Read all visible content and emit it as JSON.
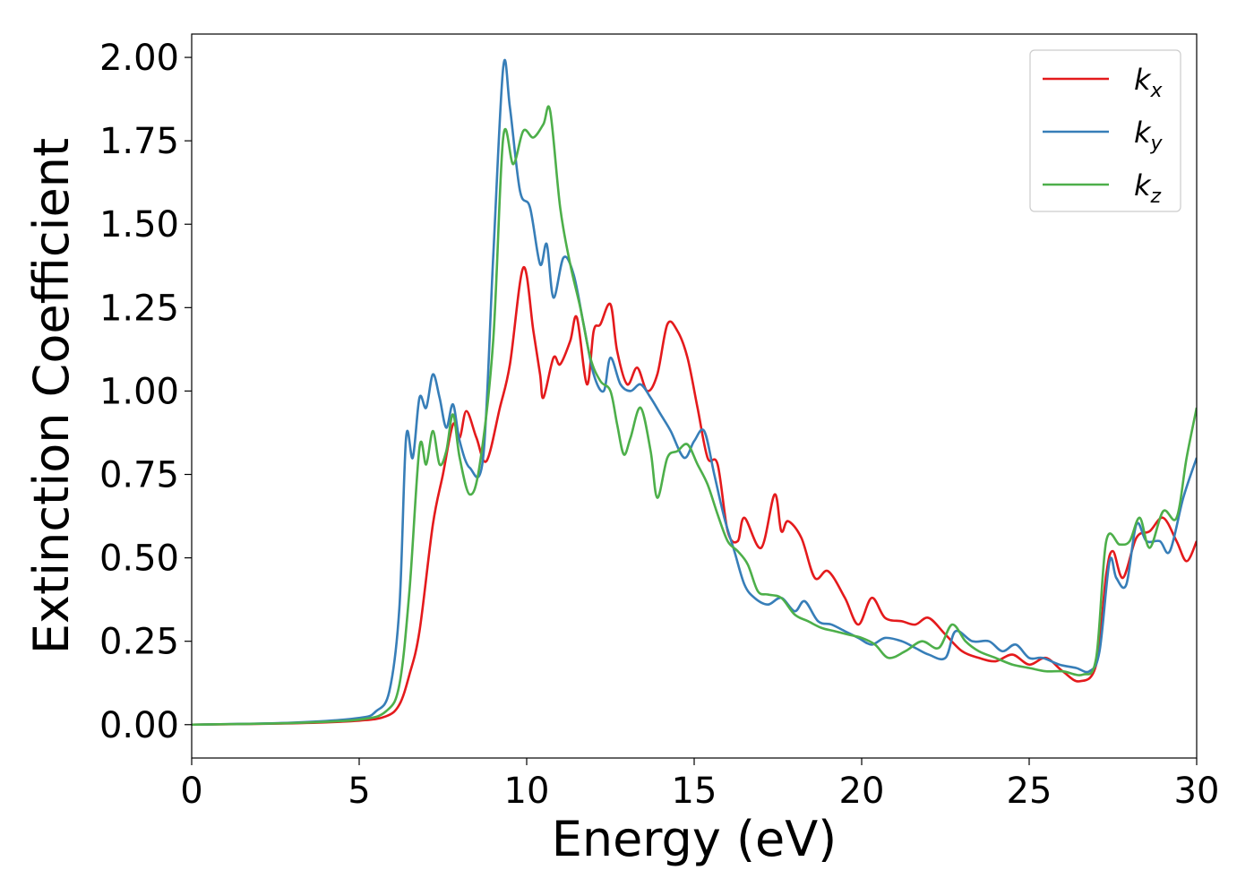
{
  "chart_data": {
    "type": "line",
    "title": "",
    "xlabel": "Energy (eV)",
    "ylabel": "Extinction Coefficient",
    "xlim": [
      0,
      30
    ],
    "ylim": [
      -0.1,
      2.07
    ],
    "xticks": [
      "0",
      "5",
      "10",
      "15",
      "20",
      "25",
      "30"
    ],
    "yticks": [
      "0.00",
      "0.25",
      "0.50",
      "0.75",
      "1.00",
      "1.25",
      "1.50",
      "1.75",
      "2.00"
    ],
    "grid": false,
    "legend_position": "top-right",
    "series": [
      {
        "name": "k_x",
        "label_main": "k",
        "label_sub": "x",
        "color": "#e41a1c",
        "points": [
          [
            0,
            0
          ],
          [
            3,
            0.004
          ],
          [
            5,
            0.012
          ],
          [
            5.8,
            0.025
          ],
          [
            6.2,
            0.06
          ],
          [
            6.5,
            0.15
          ],
          [
            6.8,
            0.28
          ],
          [
            7.2,
            0.6
          ],
          [
            7.5,
            0.75
          ],
          [
            7.8,
            0.9
          ],
          [
            8.0,
            0.86
          ],
          [
            8.2,
            0.94
          ],
          [
            8.5,
            0.86
          ],
          [
            8.8,
            0.79
          ],
          [
            9.2,
            0.95
          ],
          [
            9.5,
            1.08
          ],
          [
            9.9,
            1.37
          ],
          [
            10.2,
            1.18
          ],
          [
            10.4,
            1.05
          ],
          [
            10.5,
            0.98
          ],
          [
            10.8,
            1.1
          ],
          [
            11.0,
            1.08
          ],
          [
            11.3,
            1.15
          ],
          [
            11.5,
            1.22
          ],
          [
            11.8,
            1.02
          ],
          [
            12.0,
            1.18
          ],
          [
            12.2,
            1.2
          ],
          [
            12.5,
            1.26
          ],
          [
            12.7,
            1.12
          ],
          [
            13.0,
            1.02
          ],
          [
            13.3,
            1.07
          ],
          [
            13.6,
            1.0
          ],
          [
            13.9,
            1.05
          ],
          [
            14.2,
            1.2
          ],
          [
            14.5,
            1.18
          ],
          [
            14.8,
            1.1
          ],
          [
            15.1,
            0.95
          ],
          [
            15.4,
            0.8
          ],
          [
            15.7,
            0.78
          ],
          [
            16.0,
            0.58
          ],
          [
            16.3,
            0.55
          ],
          [
            16.5,
            0.62
          ],
          [
            17.0,
            0.53
          ],
          [
            17.4,
            0.69
          ],
          [
            17.6,
            0.58
          ],
          [
            17.8,
            0.61
          ],
          [
            18.2,
            0.56
          ],
          [
            18.6,
            0.44
          ],
          [
            19.0,
            0.46
          ],
          [
            19.5,
            0.38
          ],
          [
            19.9,
            0.3
          ],
          [
            20.3,
            0.38
          ],
          [
            20.7,
            0.32
          ],
          [
            21.2,
            0.31
          ],
          [
            21.6,
            0.3
          ],
          [
            22.0,
            0.32
          ],
          [
            22.5,
            0.27
          ],
          [
            23.0,
            0.22
          ],
          [
            23.5,
            0.2
          ],
          [
            24.0,
            0.19
          ],
          [
            24.5,
            0.21
          ],
          [
            25.0,
            0.18
          ],
          [
            25.5,
            0.2
          ],
          [
            26.0,
            0.16
          ],
          [
            26.5,
            0.13
          ],
          [
            27.0,
            0.18
          ],
          [
            27.3,
            0.45
          ],
          [
            27.5,
            0.52
          ],
          [
            27.8,
            0.44
          ],
          [
            28.2,
            0.56
          ],
          [
            28.6,
            0.58
          ],
          [
            29.0,
            0.62
          ],
          [
            29.4,
            0.55
          ],
          [
            29.7,
            0.49
          ],
          [
            30.0,
            0.55
          ]
        ]
      },
      {
        "name": "k_y",
        "label_main": "k",
        "label_sub": "y",
        "color": "#377eb8",
        "points": [
          [
            0,
            0
          ],
          [
            3,
            0.006
          ],
          [
            5,
            0.02
          ],
          [
            5.5,
            0.04
          ],
          [
            5.9,
            0.1
          ],
          [
            6.2,
            0.35
          ],
          [
            6.4,
            0.86
          ],
          [
            6.6,
            0.8
          ],
          [
            6.8,
            0.98
          ],
          [
            7.0,
            0.95
          ],
          [
            7.2,
            1.05
          ],
          [
            7.4,
            0.98
          ],
          [
            7.6,
            0.89
          ],
          [
            7.8,
            0.96
          ],
          [
            8.0,
            0.85
          ],
          [
            8.3,
            0.77
          ],
          [
            8.7,
            0.8
          ],
          [
            9.0,
            1.4
          ],
          [
            9.3,
            1.97
          ],
          [
            9.5,
            1.85
          ],
          [
            9.8,
            1.6
          ],
          [
            10.1,
            1.55
          ],
          [
            10.4,
            1.38
          ],
          [
            10.6,
            1.44
          ],
          [
            10.8,
            1.28
          ],
          [
            11.1,
            1.4
          ],
          [
            11.4,
            1.35
          ],
          [
            11.7,
            1.2
          ],
          [
            12.0,
            1.05
          ],
          [
            12.3,
            1.0
          ],
          [
            12.5,
            1.1
          ],
          [
            12.8,
            1.02
          ],
          [
            13.1,
            1.0
          ],
          [
            13.4,
            1.02
          ],
          [
            13.7,
            0.98
          ],
          [
            14.0,
            0.93
          ],
          [
            14.3,
            0.88
          ],
          [
            14.7,
            0.8
          ],
          [
            15.0,
            0.85
          ],
          [
            15.3,
            0.88
          ],
          [
            15.6,
            0.75
          ],
          [
            15.9,
            0.62
          ],
          [
            16.2,
            0.52
          ],
          [
            16.5,
            0.42
          ],
          [
            16.8,
            0.38
          ],
          [
            17.2,
            0.36
          ],
          [
            17.6,
            0.38
          ],
          [
            18.0,
            0.34
          ],
          [
            18.3,
            0.37
          ],
          [
            18.7,
            0.31
          ],
          [
            19.1,
            0.3
          ],
          [
            19.5,
            0.28
          ],
          [
            19.9,
            0.26
          ],
          [
            20.3,
            0.24
          ],
          [
            20.7,
            0.26
          ],
          [
            21.2,
            0.25
          ],
          [
            21.6,
            0.23
          ],
          [
            22.0,
            0.21
          ],
          [
            22.5,
            0.2
          ],
          [
            22.8,
            0.28
          ],
          [
            23.3,
            0.25
          ],
          [
            23.8,
            0.25
          ],
          [
            24.2,
            0.22
          ],
          [
            24.6,
            0.24
          ],
          [
            25.0,
            0.2
          ],
          [
            25.4,
            0.2
          ],
          [
            25.9,
            0.18
          ],
          [
            26.4,
            0.17
          ],
          [
            26.8,
            0.16
          ],
          [
            27.1,
            0.22
          ],
          [
            27.4,
            0.49
          ],
          [
            27.6,
            0.44
          ],
          [
            27.9,
            0.42
          ],
          [
            28.2,
            0.6
          ],
          [
            28.5,
            0.55
          ],
          [
            28.9,
            0.55
          ],
          [
            29.2,
            0.52
          ],
          [
            29.6,
            0.68
          ],
          [
            30.0,
            0.8
          ]
        ]
      },
      {
        "name": "k_z",
        "label_main": "k",
        "label_sub": "z",
        "color": "#4daf4a",
        "points": [
          [
            0,
            0
          ],
          [
            3,
            0.005
          ],
          [
            5,
            0.015
          ],
          [
            5.8,
            0.04
          ],
          [
            6.2,
            0.12
          ],
          [
            6.5,
            0.4
          ],
          [
            6.8,
            0.83
          ],
          [
            7.0,
            0.78
          ],
          [
            7.2,
            0.88
          ],
          [
            7.4,
            0.78
          ],
          [
            7.6,
            0.82
          ],
          [
            7.8,
            0.93
          ],
          [
            8.0,
            0.8
          ],
          [
            8.3,
            0.69
          ],
          [
            8.6,
            0.78
          ],
          [
            9.0,
            1.15
          ],
          [
            9.3,
            1.76
          ],
          [
            9.6,
            1.68
          ],
          [
            9.9,
            1.78
          ],
          [
            10.2,
            1.76
          ],
          [
            10.5,
            1.8
          ],
          [
            10.7,
            1.84
          ],
          [
            11.0,
            1.55
          ],
          [
            11.3,
            1.38
          ],
          [
            11.6,
            1.25
          ],
          [
            11.9,
            1.1
          ],
          [
            12.2,
            1.03
          ],
          [
            12.5,
            1.0
          ],
          [
            12.7,
            0.9
          ],
          [
            12.9,
            0.81
          ],
          [
            13.1,
            0.86
          ],
          [
            13.4,
            0.95
          ],
          [
            13.7,
            0.82
          ],
          [
            13.9,
            0.68
          ],
          [
            14.2,
            0.8
          ],
          [
            14.5,
            0.82
          ],
          [
            14.8,
            0.84
          ],
          [
            15.1,
            0.78
          ],
          [
            15.4,
            0.72
          ],
          [
            15.7,
            0.63
          ],
          [
            16.0,
            0.55
          ],
          [
            16.3,
            0.52
          ],
          [
            16.6,
            0.48
          ],
          [
            16.9,
            0.4
          ],
          [
            17.2,
            0.39
          ],
          [
            17.6,
            0.38
          ],
          [
            18.0,
            0.33
          ],
          [
            18.4,
            0.31
          ],
          [
            18.8,
            0.29
          ],
          [
            19.2,
            0.28
          ],
          [
            19.6,
            0.27
          ],
          [
            20.0,
            0.26
          ],
          [
            20.4,
            0.24
          ],
          [
            20.8,
            0.2
          ],
          [
            21.3,
            0.22
          ],
          [
            21.8,
            0.25
          ],
          [
            22.3,
            0.23
          ],
          [
            22.7,
            0.3
          ],
          [
            23.1,
            0.25
          ],
          [
            23.5,
            0.22
          ],
          [
            24.0,
            0.2
          ],
          [
            24.5,
            0.18
          ],
          [
            25.0,
            0.17
          ],
          [
            25.5,
            0.16
          ],
          [
            26.0,
            0.16
          ],
          [
            26.6,
            0.15
          ],
          [
            27.0,
            0.2
          ],
          [
            27.3,
            0.55
          ],
          [
            27.7,
            0.54
          ],
          [
            28.0,
            0.55
          ],
          [
            28.3,
            0.62
          ],
          [
            28.6,
            0.53
          ],
          [
            29.0,
            0.64
          ],
          [
            29.4,
            0.62
          ],
          [
            29.7,
            0.8
          ],
          [
            30.0,
            0.95
          ]
        ]
      }
    ]
  }
}
